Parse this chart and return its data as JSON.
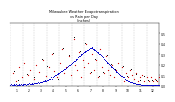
{
  "title": "Milwaukee Weather Evapotranspiration\nvs Rain per Day\n(Inches)",
  "background_color": "#ffffff",
  "et_color": "#0000cc",
  "rain_color": "#cc0000",
  "grid_color": "#aaaaaa",
  "ylim": [
    0,
    0.6
  ],
  "xlim": [
    0,
    365
  ],
  "month_starts": [
    1,
    32,
    60,
    91,
    121,
    152,
    182,
    213,
    244,
    274,
    305,
    335
  ],
  "month_labels": [
    "1",
    "2",
    "3",
    "4",
    "5",
    "6",
    "7",
    "8",
    "9",
    "10",
    "11",
    "12"
  ],
  "yticks": [
    0.0,
    0.1,
    0.2,
    0.3,
    0.4,
    0.5
  ],
  "et_points": [
    [
      1,
      0.01
    ],
    [
      3,
      0.02
    ],
    [
      5,
      0.01
    ],
    [
      7,
      0.01
    ],
    [
      9,
      0.02
    ],
    [
      11,
      0.01
    ],
    [
      13,
      0.01
    ],
    [
      15,
      0.02
    ],
    [
      17,
      0.01
    ],
    [
      19,
      0.01
    ],
    [
      21,
      0.02
    ],
    [
      23,
      0.01
    ],
    [
      25,
      0.01
    ],
    [
      27,
      0.02
    ],
    [
      29,
      0.01
    ],
    [
      31,
      0.01
    ],
    [
      33,
      0.02
    ],
    [
      35,
      0.02
    ],
    [
      37,
      0.02
    ],
    [
      39,
      0.01
    ],
    [
      41,
      0.02
    ],
    [
      43,
      0.02
    ],
    [
      45,
      0.02
    ],
    [
      47,
      0.03
    ],
    [
      49,
      0.02
    ],
    [
      51,
      0.02
    ],
    [
      53,
      0.03
    ],
    [
      55,
      0.02
    ],
    [
      57,
      0.02
    ],
    [
      59,
      0.03
    ],
    [
      61,
      0.03
    ],
    [
      63,
      0.03
    ],
    [
      65,
      0.03
    ],
    [
      67,
      0.03
    ],
    [
      69,
      0.04
    ],
    [
      71,
      0.03
    ],
    [
      73,
      0.04
    ],
    [
      75,
      0.04
    ],
    [
      77,
      0.04
    ],
    [
      79,
      0.04
    ],
    [
      81,
      0.05
    ],
    [
      83,
      0.05
    ],
    [
      85,
      0.05
    ],
    [
      87,
      0.06
    ],
    [
      89,
      0.05
    ],
    [
      91,
      0.06
    ],
    [
      93,
      0.06
    ],
    [
      95,
      0.07
    ],
    [
      97,
      0.07
    ],
    [
      99,
      0.07
    ],
    [
      101,
      0.08
    ],
    [
      103,
      0.07
    ],
    [
      105,
      0.08
    ],
    [
      107,
      0.09
    ],
    [
      109,
      0.09
    ],
    [
      111,
      0.1
    ],
    [
      113,
      0.1
    ],
    [
      115,
      0.11
    ],
    [
      117,
      0.11
    ],
    [
      119,
      0.12
    ],
    [
      121,
      0.12
    ],
    [
      123,
      0.13
    ],
    [
      125,
      0.14
    ],
    [
      127,
      0.14
    ],
    [
      129,
      0.15
    ],
    [
      131,
      0.15
    ],
    [
      133,
      0.16
    ],
    [
      135,
      0.16
    ],
    [
      137,
      0.17
    ],
    [
      139,
      0.18
    ],
    [
      141,
      0.18
    ],
    [
      143,
      0.19
    ],
    [
      145,
      0.2
    ],
    [
      147,
      0.2
    ],
    [
      149,
      0.21
    ],
    [
      151,
      0.22
    ],
    [
      153,
      0.22
    ],
    [
      155,
      0.23
    ],
    [
      157,
      0.24
    ],
    [
      159,
      0.24
    ],
    [
      161,
      0.25
    ],
    [
      163,
      0.26
    ],
    [
      165,
      0.26
    ],
    [
      167,
      0.27
    ],
    [
      169,
      0.28
    ],
    [
      171,
      0.28
    ],
    [
      173,
      0.29
    ],
    [
      175,
      0.3
    ],
    [
      177,
      0.3
    ],
    [
      179,
      0.31
    ],
    [
      181,
      0.32
    ],
    [
      183,
      0.32
    ],
    [
      185,
      0.33
    ],
    [
      187,
      0.33
    ],
    [
      189,
      0.34
    ],
    [
      191,
      0.34
    ],
    [
      193,
      0.35
    ],
    [
      195,
      0.35
    ],
    [
      197,
      0.36
    ],
    [
      199,
      0.36
    ],
    [
      200,
      0.37
    ],
    [
      201,
      0.36
    ],
    [
      202,
      0.36
    ],
    [
      203,
      0.35
    ],
    [
      205,
      0.35
    ],
    [
      207,
      0.34
    ],
    [
      209,
      0.34
    ],
    [
      211,
      0.33
    ],
    [
      213,
      0.32
    ],
    [
      215,
      0.32
    ],
    [
      217,
      0.31
    ],
    [
      219,
      0.3
    ],
    [
      221,
      0.3
    ],
    [
      223,
      0.29
    ],
    [
      225,
      0.28
    ],
    [
      227,
      0.27
    ],
    [
      229,
      0.27
    ],
    [
      231,
      0.26
    ],
    [
      233,
      0.25
    ],
    [
      235,
      0.24
    ],
    [
      237,
      0.23
    ],
    [
      239,
      0.22
    ],
    [
      241,
      0.22
    ],
    [
      243,
      0.21
    ],
    [
      245,
      0.2
    ],
    [
      247,
      0.19
    ],
    [
      249,
      0.18
    ],
    [
      251,
      0.18
    ],
    [
      253,
      0.17
    ],
    [
      255,
      0.16
    ],
    [
      257,
      0.15
    ],
    [
      259,
      0.14
    ],
    [
      261,
      0.13
    ],
    [
      263,
      0.13
    ],
    [
      265,
      0.12
    ],
    [
      267,
      0.11
    ],
    [
      269,
      0.1
    ],
    [
      271,
      0.1
    ],
    [
      273,
      0.09
    ],
    [
      275,
      0.09
    ],
    [
      277,
      0.08
    ],
    [
      279,
      0.08
    ],
    [
      281,
      0.07
    ],
    [
      283,
      0.07
    ],
    [
      285,
      0.06
    ],
    [
      287,
      0.06
    ],
    [
      289,
      0.05
    ],
    [
      291,
      0.05
    ],
    [
      293,
      0.05
    ],
    [
      295,
      0.04
    ],
    [
      297,
      0.04
    ],
    [
      299,
      0.04
    ],
    [
      301,
      0.03
    ],
    [
      303,
      0.03
    ],
    [
      305,
      0.03
    ],
    [
      307,
      0.03
    ],
    [
      309,
      0.02
    ],
    [
      311,
      0.02
    ],
    [
      313,
      0.02
    ],
    [
      315,
      0.02
    ],
    [
      317,
      0.02
    ],
    [
      319,
      0.02
    ],
    [
      321,
      0.01
    ],
    [
      323,
      0.01
    ],
    [
      325,
      0.01
    ],
    [
      327,
      0.01
    ],
    [
      329,
      0.01
    ],
    [
      331,
      0.01
    ],
    [
      333,
      0.01
    ],
    [
      335,
      0.01
    ],
    [
      337,
      0.01
    ],
    [
      339,
      0.01
    ],
    [
      341,
      0.01
    ],
    [
      343,
      0.01
    ],
    [
      345,
      0.01
    ],
    [
      347,
      0.01
    ],
    [
      349,
      0.01
    ],
    [
      351,
      0.01
    ],
    [
      353,
      0.01
    ],
    [
      355,
      0.01
    ],
    [
      357,
      0.01
    ],
    [
      359,
      0.01
    ],
    [
      361,
      0.01
    ],
    [
      363,
      0.01
    ],
    [
      365,
      0.01
    ]
  ],
  "rain_points": [
    [
      8,
      0.12
    ],
    [
      15,
      0.05
    ],
    [
      22,
      0.18
    ],
    [
      29,
      0.08
    ],
    [
      35,
      0.22
    ],
    [
      44,
      0.1
    ],
    [
      50,
      0.15
    ],
    [
      58,
      0.07
    ],
    [
      65,
      0.2
    ],
    [
      72,
      0.13
    ],
    [
      80,
      0.25
    ],
    [
      88,
      0.09
    ],
    [
      95,
      0.18
    ],
    [
      102,
      0.3
    ],
    [
      108,
      0.14
    ],
    [
      115,
      0.08
    ],
    [
      122,
      0.22
    ],
    [
      128,
      0.35
    ],
    [
      133,
      0.12
    ],
    [
      138,
      0.18
    ],
    [
      144,
      0.28
    ],
    [
      150,
      0.1
    ],
    [
      156,
      0.45
    ],
    [
      160,
      0.2
    ],
    [
      165,
      0.15
    ],
    [
      170,
      0.32
    ],
    [
      174,
      0.08
    ],
    [
      178,
      0.25
    ],
    [
      182,
      0.18
    ],
    [
      186,
      0.4
    ],
    [
      191,
      0.22
    ],
    [
      196,
      0.12
    ],
    [
      200,
      0.3
    ],
    [
      205,
      0.15
    ],
    [
      210,
      0.25
    ],
    [
      215,
      0.08
    ],
    [
      220,
      0.35
    ],
    [
      225,
      0.18
    ],
    [
      230,
      0.12
    ],
    [
      235,
      0.28
    ],
    [
      240,
      0.15
    ],
    [
      245,
      0.1
    ],
    [
      250,
      0.2
    ],
    [
      255,
      0.08
    ],
    [
      260,
      0.15
    ],
    [
      265,
      0.22
    ],
    [
      270,
      0.1
    ],
    [
      275,
      0.18
    ],
    [
      280,
      0.05
    ],
    [
      285,
      0.12
    ],
    [
      290,
      0.08
    ],
    [
      295,
      0.15
    ],
    [
      300,
      0.1
    ],
    [
      305,
      0.07
    ],
    [
      310,
      0.12
    ],
    [
      315,
      0.05
    ],
    [
      320,
      0.08
    ],
    [
      325,
      0.1
    ],
    [
      330,
      0.05
    ],
    [
      335,
      0.08
    ],
    [
      340,
      0.05
    ],
    [
      345,
      0.08
    ],
    [
      350,
      0.05
    ],
    [
      355,
      0.07
    ],
    [
      360,
      0.05
    ],
    [
      365,
      0.08
    ]
  ],
  "black_points": [
    [
      10,
      0.14
    ],
    [
      20,
      0.06
    ],
    [
      42,
      0.11
    ],
    [
      60,
      0.08
    ],
    [
      78,
      0.26
    ],
    [
      90,
      0.19
    ],
    [
      105,
      0.31
    ],
    [
      118,
      0.07
    ],
    [
      130,
      0.36
    ],
    [
      145,
      0.29
    ],
    [
      158,
      0.46
    ],
    [
      172,
      0.33
    ],
    [
      185,
      0.41
    ],
    [
      198,
      0.13
    ],
    [
      208,
      0.26
    ],
    [
      218,
      0.09
    ],
    [
      228,
      0.13
    ],
    [
      238,
      0.29
    ],
    [
      248,
      0.21
    ],
    [
      258,
      0.16
    ],
    [
      268,
      0.11
    ],
    [
      278,
      0.19
    ],
    [
      288,
      0.09
    ],
    [
      298,
      0.16
    ],
    [
      308,
      0.11
    ],
    [
      318,
      0.06
    ],
    [
      328,
      0.09
    ],
    [
      338,
      0.06
    ],
    [
      348,
      0.06
    ],
    [
      358,
      0.06
    ]
  ]
}
